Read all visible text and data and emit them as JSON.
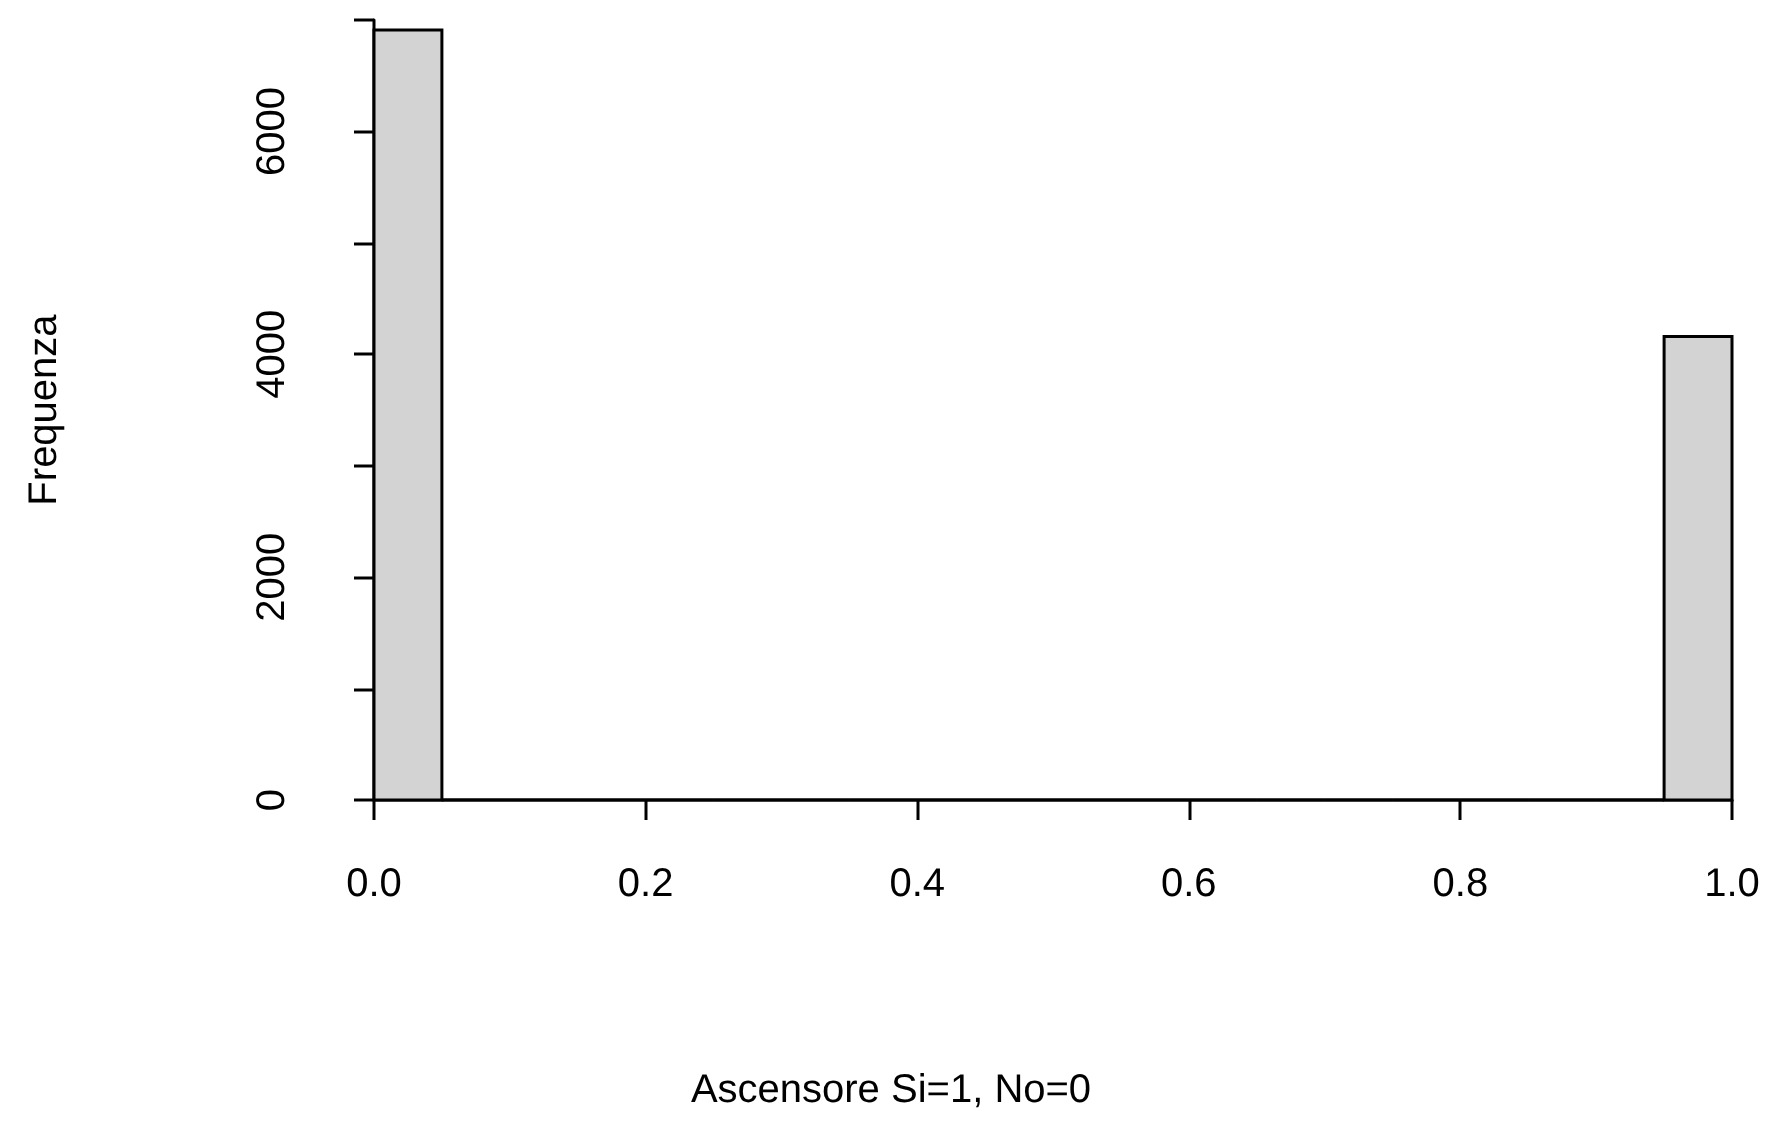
{
  "chart_data": {
    "type": "histogram",
    "xlabel": "Ascensore Si=1, No=0",
    "ylabel": "Frequenza",
    "bins": [
      0,
      0.05,
      0.1,
      0.15,
      0.2,
      0.25,
      0.3,
      0.35,
      0.4,
      0.45,
      0.5,
      0.55,
      0.6,
      0.65,
      0.7,
      0.75,
      0.8,
      0.85,
      0.9,
      0.95,
      1
    ],
    "values": [
      6910,
      0,
      0,
      0,
      0,
      0,
      0,
      0,
      0,
      0,
      0,
      0,
      0,
      0,
      0,
      0,
      0,
      0,
      0,
      4160
    ],
    "color": "#d3d3d3",
    "xlim": [
      0,
      1
    ],
    "xticks": [
      {
        "value": 0,
        "label": "0.0"
      },
      {
        "value": 0.2,
        "label": "0.2"
      },
      {
        "value": 0.4,
        "label": "0.4"
      },
      {
        "value": 0.6,
        "label": "0.6"
      },
      {
        "value": 0.8,
        "label": "0.8"
      },
      {
        "value": 1,
        "label": "1.0"
      }
    ],
    "ylim": [
      0,
      7000
    ],
    "yticks": [
      0,
      {
        "value": 1000,
        "label": null
      },
      2000,
      {
        "value": 3000,
        "label": null
      },
      4000,
      {
        "value": 5000,
        "label": null
      },
      6000,
      {
        "value": 7000,
        "label": null
      }
    ],
    "grid": false
  }
}
